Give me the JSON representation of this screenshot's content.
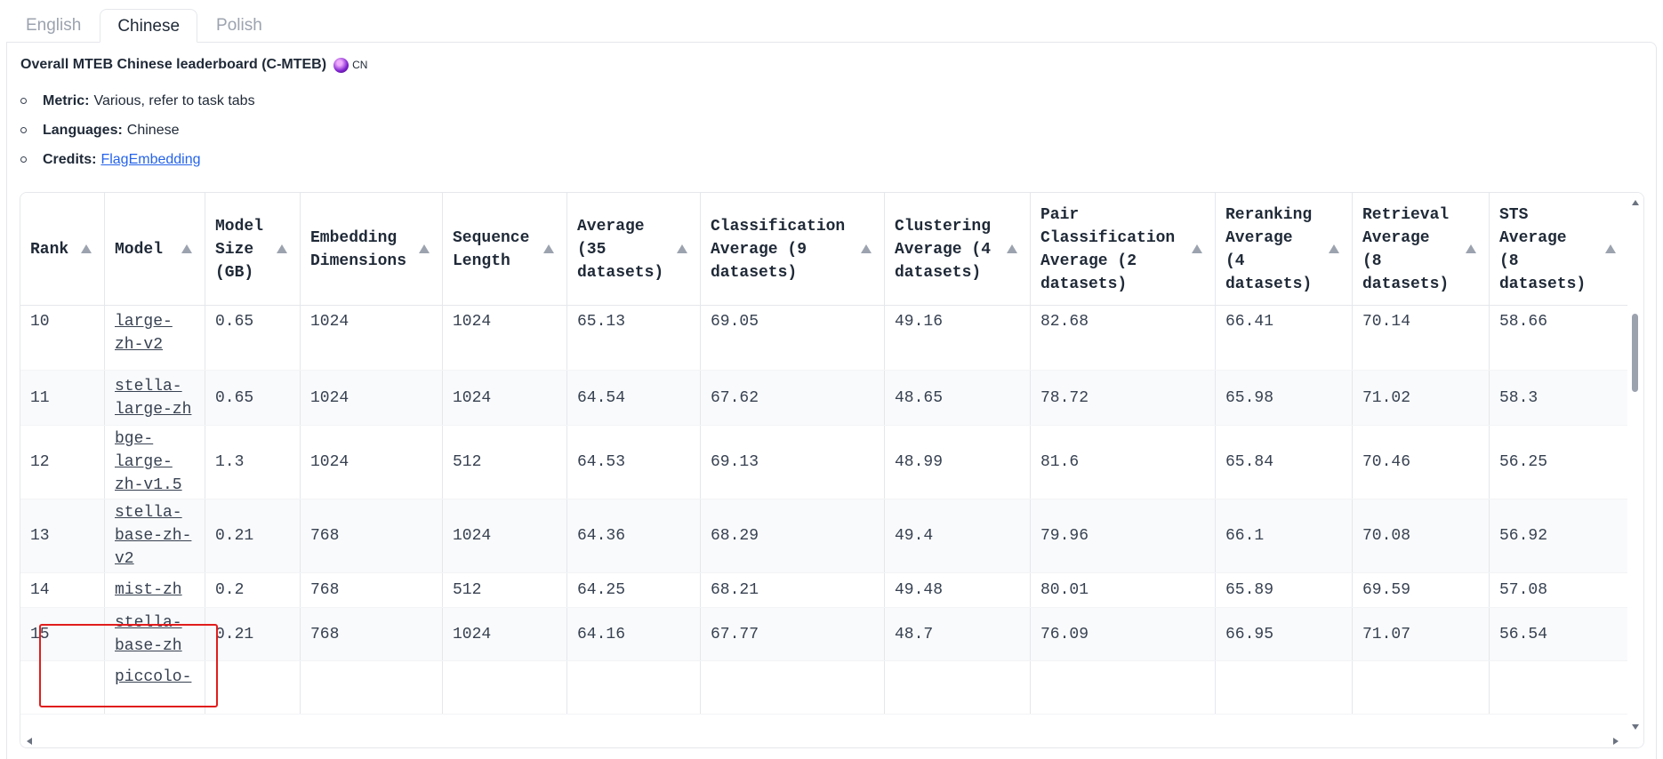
{
  "tabs": [
    {
      "label": "English"
    },
    {
      "label": "Chinese"
    },
    {
      "label": "Polish"
    }
  ],
  "heading": {
    "title": "Overall MTEB Chinese leaderboard (C-MTEB)",
    "flag_text": "CN",
    "icon": "globe-icon"
  },
  "meta": {
    "metric_key": "Metric:",
    "metric_value": "Various, refer to task tabs",
    "languages_key": "Languages:",
    "languages_value": "Chinese",
    "credits_key": "Credits:",
    "credits_link": "FlagEmbedding"
  },
  "table": {
    "columns": [
      "Rank",
      "Model",
      "Model Size (GB)",
      "Embedding Dimensions",
      "Sequence Length",
      "Average (35 datasets)",
      "Classification Average (9 datasets)",
      "Clustering Average (4 datasets)",
      "Pair Classification Average (2 datasets)",
      "Reranking Average (4 datasets)",
      "Retrieval Average (8 datasets)",
      "STS Average (8 datasets)"
    ],
    "header_lines": [
      [
        "Rank"
      ],
      [
        "Model"
      ],
      [
        "Model",
        "Size",
        "(GB)"
      ],
      [
        "Embedding",
        "Dimensions"
      ],
      [
        "Sequence",
        "Length"
      ],
      [
        "Average",
        "(35",
        "datasets)"
      ],
      [
        "Classification",
        "Average (9",
        "datasets)"
      ],
      [
        "Clustering",
        "Average (4",
        "datasets)"
      ],
      [
        "Pair",
        "Classification",
        "Average (2",
        "datasets)"
      ],
      [
        "Reranking",
        "Average",
        "(4",
        "datasets)"
      ],
      [
        "Retrieval",
        "Average",
        "(8",
        "datasets)"
      ],
      [
        "STS",
        "Average",
        "(8",
        "datasets)"
      ]
    ],
    "rows": [
      {
        "rank": "10",
        "model_lines": [
          "large-",
          "zh-v2"
        ],
        "size": "0.65",
        "dims": "1024",
        "seq": "1024",
        "avg": "65.13",
        "cls": "69.05",
        "clu": "49.16",
        "pair": "82.68",
        "rer": "66.41",
        "ret": "70.14",
        "sts": "58.66"
      },
      {
        "rank": "11",
        "model_lines": [
          "stella-",
          "large-zh"
        ],
        "size": "0.65",
        "dims": "1024",
        "seq": "1024",
        "avg": "64.54",
        "cls": "67.62",
        "clu": "48.65",
        "pair": "78.72",
        "rer": "65.98",
        "ret": "71.02",
        "sts": "58.3"
      },
      {
        "rank": "12",
        "model_lines": [
          "bge-",
          "large-",
          "zh-v1.5"
        ],
        "size": "1.3",
        "dims": "1024",
        "seq": "512",
        "avg": "64.53",
        "cls": "69.13",
        "clu": "48.99",
        "pair": "81.6",
        "rer": "65.84",
        "ret": "70.46",
        "sts": "56.25"
      },
      {
        "rank": "13",
        "model_lines": [
          "stella-",
          "base-zh-",
          "v2"
        ],
        "size": "0.21",
        "dims": "768",
        "seq": "1024",
        "avg": "64.36",
        "cls": "68.29",
        "clu": "49.4",
        "pair": "79.96",
        "rer": "66.1",
        "ret": "70.08",
        "sts": "56.92"
      },
      {
        "rank": "14",
        "model_lines": [
          "mist-zh"
        ],
        "size": "0.2",
        "dims": "768",
        "seq": "512",
        "avg": "64.25",
        "cls": "68.21",
        "clu": "49.48",
        "pair": "80.01",
        "rer": "65.89",
        "ret": "69.59",
        "sts": "57.08"
      },
      {
        "rank": "15",
        "model_lines": [
          "stella-",
          "base-zh"
        ],
        "size": "0.21",
        "dims": "768",
        "seq": "1024",
        "avg": "64.16",
        "cls": "67.77",
        "clu": "48.7",
        "pair": "76.09",
        "rer": "66.95",
        "ret": "71.07",
        "sts": "56.54"
      },
      {
        "rank": "",
        "model_lines": [
          "piccolo-"
        ],
        "size": "",
        "dims": "",
        "seq": "",
        "avg": "",
        "cls": "",
        "clu": "",
        "pair": "",
        "rer": "",
        "ret": "",
        "sts": ""
      }
    ]
  },
  "colors": {
    "highlight": "#e11d1d",
    "link": "#2563eb",
    "row_alt": "#f9fafb",
    "border": "#e5e7eb"
  }
}
